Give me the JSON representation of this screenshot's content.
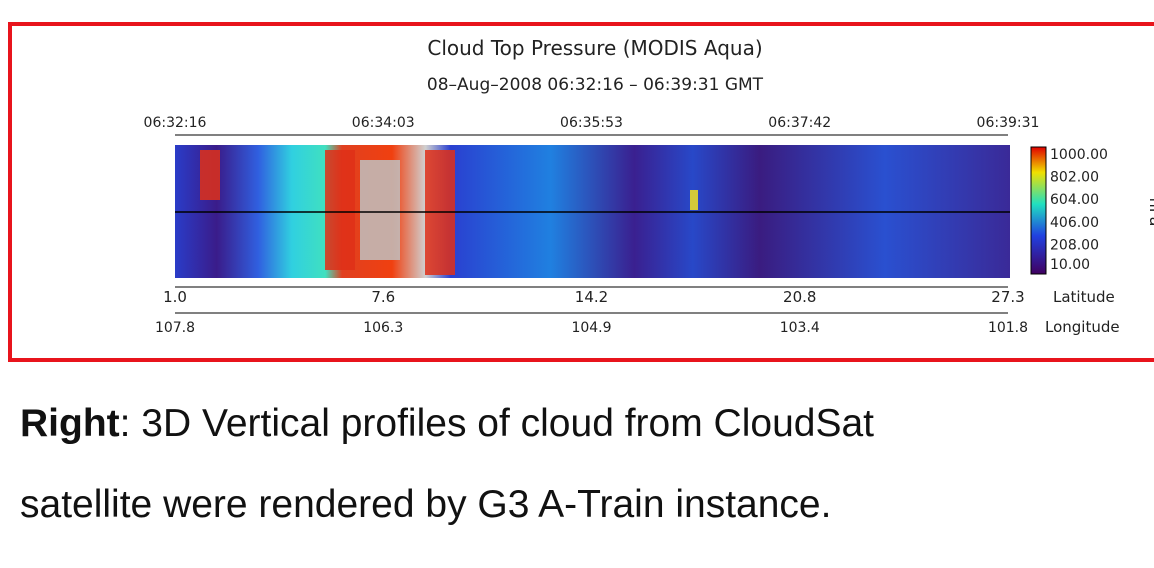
{
  "figure": {
    "title": "Cloud Top Pressure (MODIS Aqua)",
    "subtitle": "08–Aug–2008  06:32:16 – 06:39:31 GMT",
    "time_ticks": [
      "06:32:16",
      "06:34:03",
      "06:35:53",
      "06:37:42",
      "06:39:31"
    ],
    "colorbar": {
      "labels": [
        "1000.00",
        "802.00",
        "604.00",
        "406.00",
        "208.00",
        "10.00"
      ],
      "unit": "hPa"
    },
    "latitude": {
      "ticks": [
        "1.0",
        "7.6",
        "14.2",
        "20.8",
        "27.3"
      ],
      "label": "Latitude"
    },
    "longitude": {
      "ticks": [
        "107.8",
        "106.3",
        "104.9",
        "103.4",
        "101.8"
      ],
      "label": "Longitude"
    }
  },
  "caption": {
    "bold": "Right",
    "line1": ": 3D Vertical profiles of cloud from CloudSat",
    "line2": "satellite were rendered by G3 A-Train instance."
  }
}
